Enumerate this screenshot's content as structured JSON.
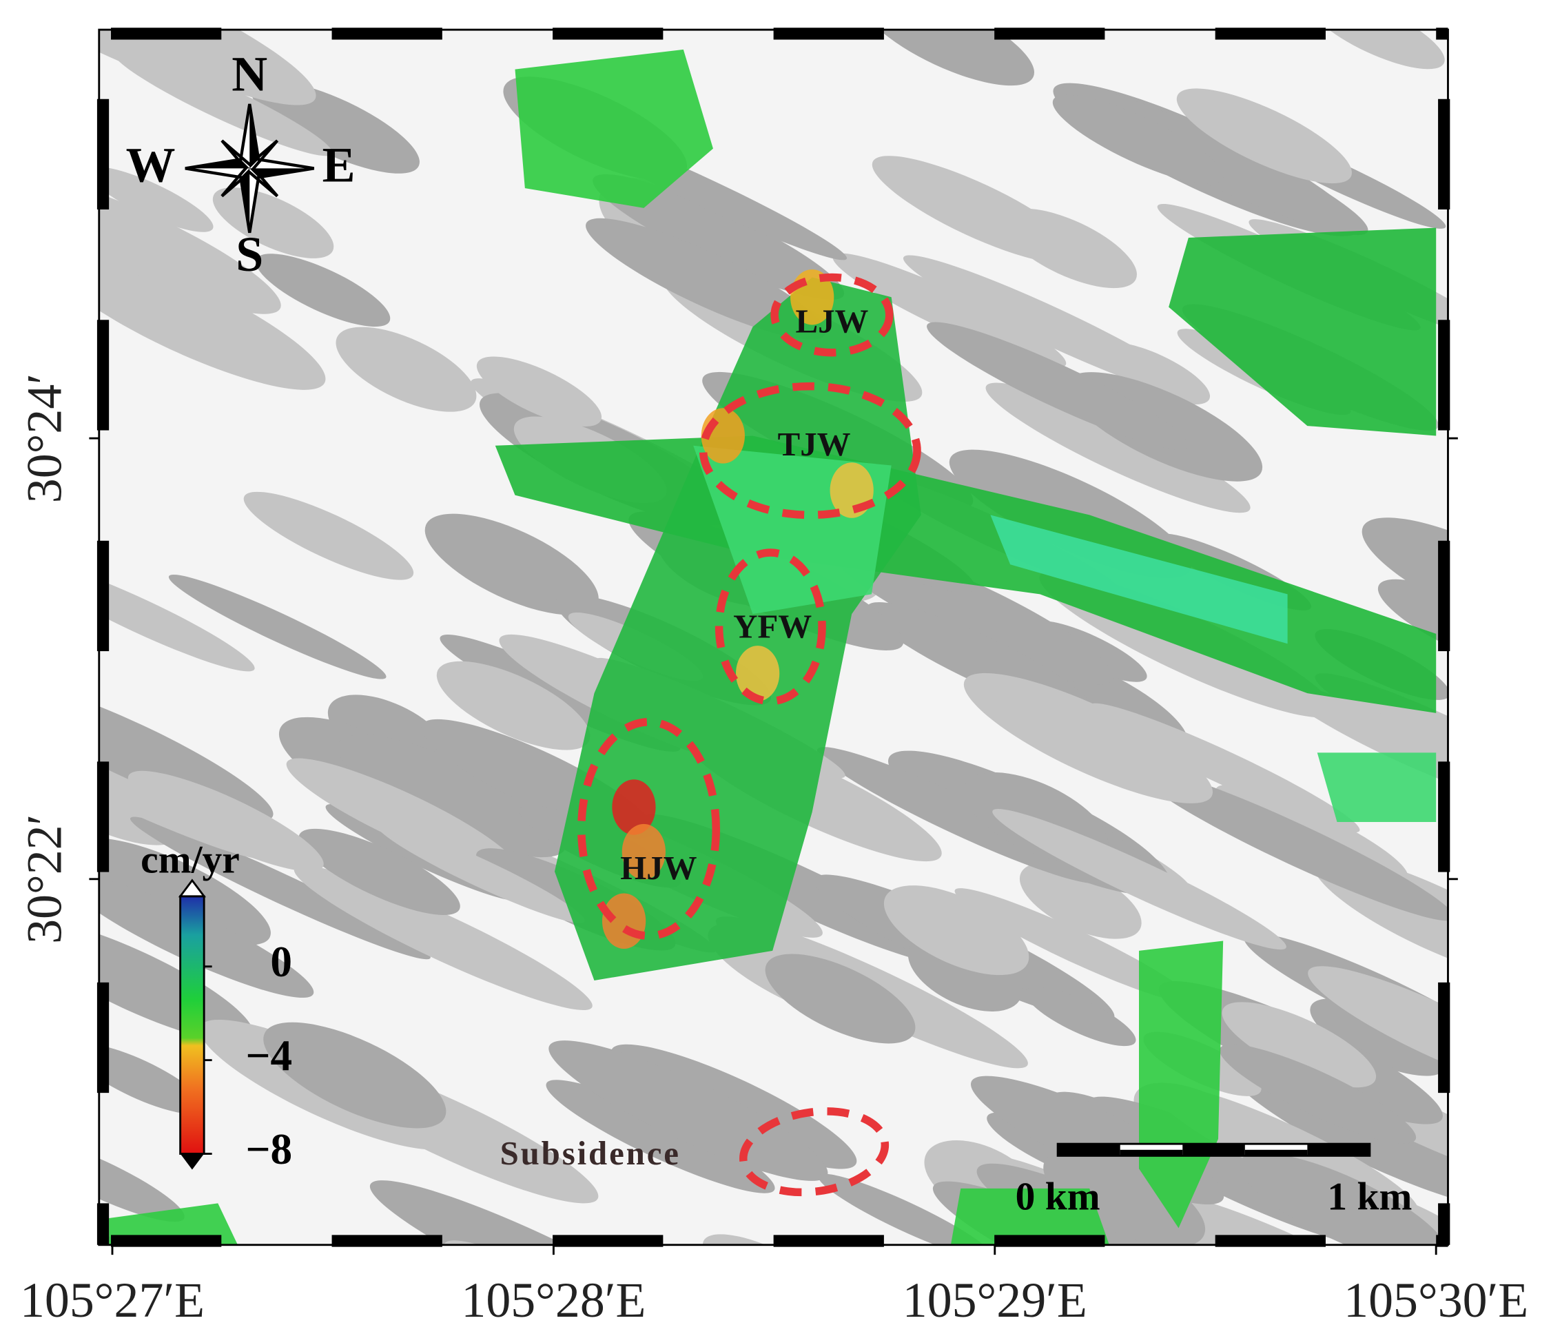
{
  "map": {
    "compass": {
      "north": "N",
      "south": "S",
      "east": "E",
      "west": "W"
    },
    "xlim": [
      105.4495,
      105.50045
    ],
    "ylim": [
      30.339,
      30.4309
    ],
    "xticks": [
      {
        "value": 105.45,
        "label": "105°27′E"
      },
      {
        "value": 105.466667,
        "label": "105°28′E"
      },
      {
        "value": 105.483333,
        "label": "105°29′E"
      },
      {
        "value": 105.5,
        "label": "105°30′E"
      }
    ],
    "yticks": [
      {
        "value": 30.4,
        "label": "30°24′"
      },
      {
        "value": 30.366667,
        "label": "30°22′"
      }
    ],
    "annotations": [
      "LJW",
      "TJW",
      "YFW",
      "HJW",
      "Subsidence"
    ],
    "colorbar": {
      "unit": "cm/yr",
      "clim": [
        -8,
        3
      ],
      "ticks": [
        0,
        {
          "value": -4,
          "label": "−4"
        },
        {
          "value": -8,
          "label": "−8"
        }
      ]
    },
    "scale_bar": {
      "start": "0 km",
      "end": "1 km"
    }
  }
}
